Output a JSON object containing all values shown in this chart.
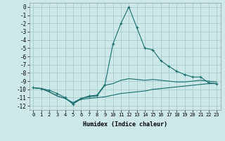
{
  "xlabel": "Humidex (Indice chaleur)",
  "ylabel": "",
  "bg_color": "#cce8e8",
  "grid_color": "#aad0d0",
  "line_color": "#1a6e6e",
  "x": [
    0,
    1,
    2,
    3,
    4,
    5,
    6,
    7,
    8,
    9,
    10,
    11,
    12,
    13,
    14,
    15,
    16,
    17,
    18,
    19,
    20,
    21,
    22,
    23
  ],
  "y_max": [
    -9.8,
    -9.9,
    -10.1,
    -10.5,
    -11.0,
    -11.8,
    -11.1,
    -10.8,
    -10.7,
    -9.4,
    -4.5,
    -2.0,
    0.0,
    -2.5,
    -5.0,
    -5.2,
    -6.5,
    -7.2,
    -7.8,
    -8.2,
    -8.5,
    -8.5,
    -9.2,
    -9.3
  ],
  "y_mean": [
    -9.8,
    -9.9,
    -10.3,
    -10.8,
    -11.1,
    -11.6,
    -11.1,
    -10.9,
    -10.8,
    -9.5,
    -9.3,
    -8.9,
    -8.7,
    -8.8,
    -8.9,
    -8.8,
    -8.9,
    -9.0,
    -9.1,
    -9.1,
    -9.0,
    -8.9,
    -9.0,
    -9.1
  ],
  "y_min": [
    -9.8,
    -9.9,
    -10.3,
    -10.8,
    -11.1,
    -11.7,
    -11.2,
    -11.1,
    -11.0,
    -10.9,
    -10.7,
    -10.5,
    -10.4,
    -10.3,
    -10.2,
    -10.0,
    -9.9,
    -9.8,
    -9.7,
    -9.6,
    -9.5,
    -9.4,
    -9.3,
    -9.3
  ],
  "ylim": [
    -12.5,
    0.5
  ],
  "xlim": [
    -0.5,
    23.5
  ],
  "yticks": [
    0,
    -1,
    -2,
    -3,
    -4,
    -5,
    -6,
    -7,
    -8,
    -9,
    -10,
    -11,
    -12
  ],
  "xticks": [
    0,
    1,
    2,
    3,
    4,
    5,
    6,
    7,
    8,
    9,
    10,
    11,
    12,
    13,
    14,
    15,
    16,
    17,
    18,
    19,
    20,
    21,
    22,
    23
  ]
}
